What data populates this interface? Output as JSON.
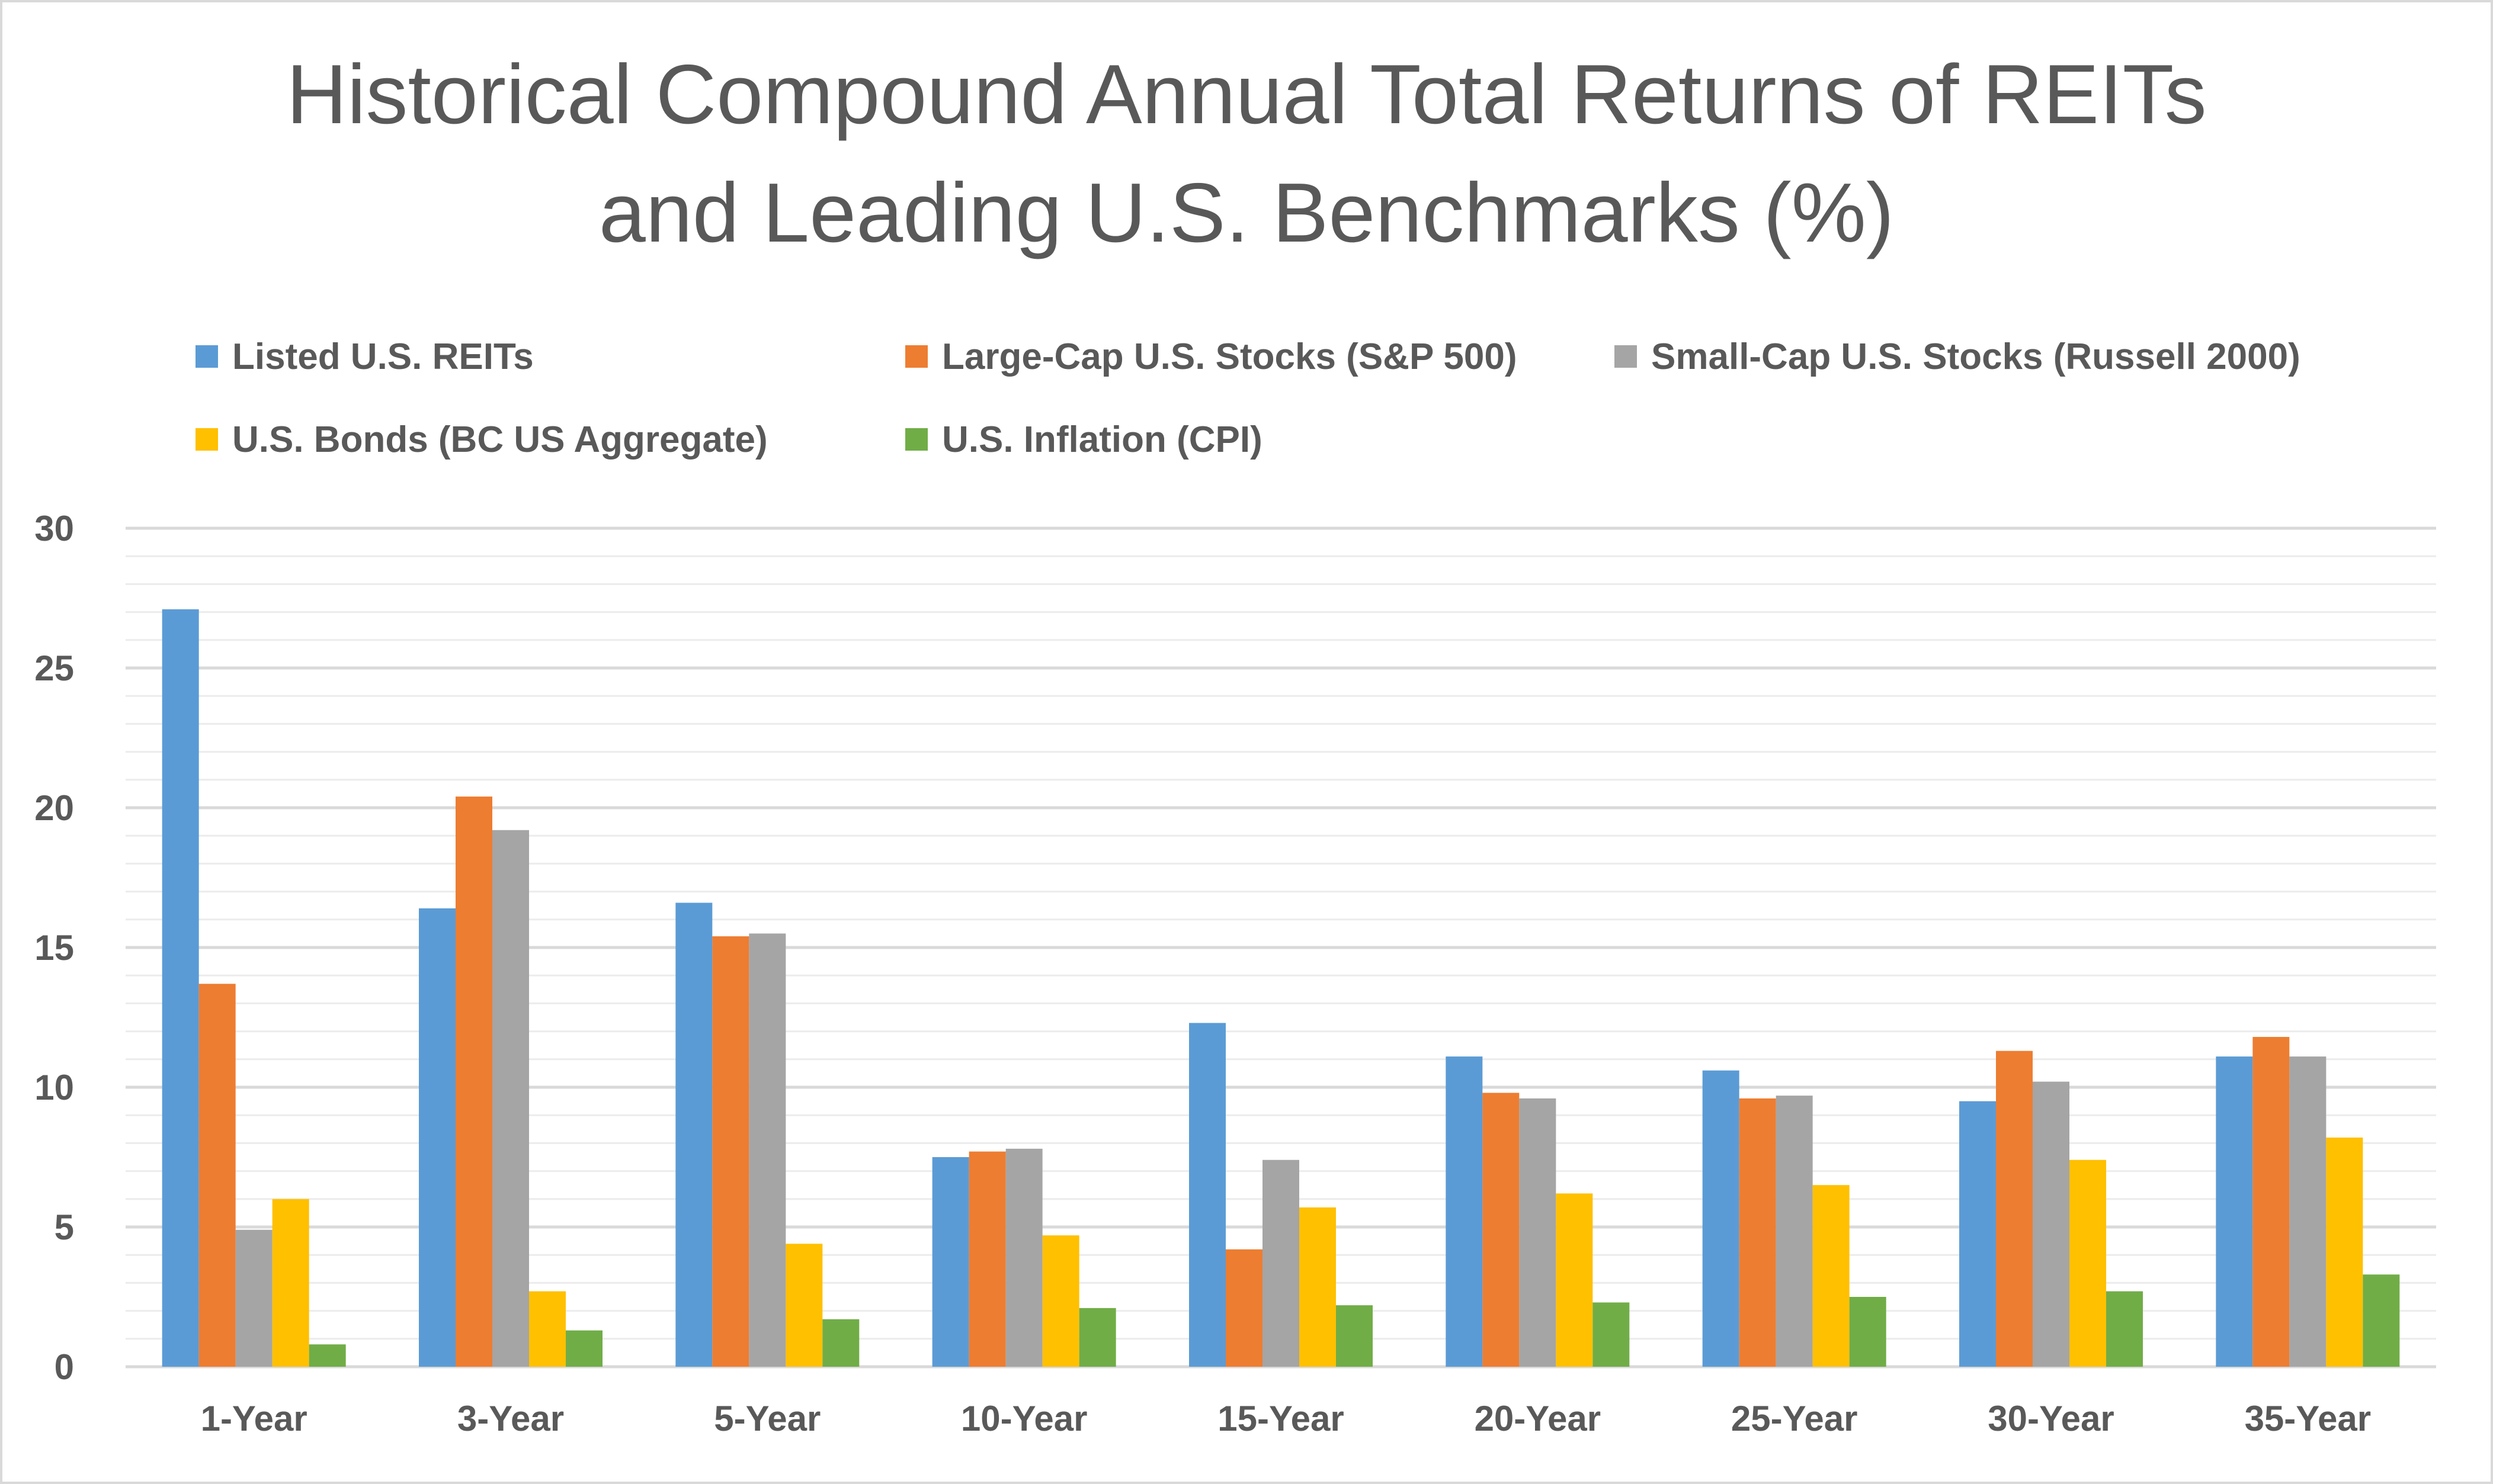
{
  "chart_data": {
    "type": "bar",
    "title": "Historical Compound Annual Total Returns of REITs and Leading U.S. Benchmarks (%)",
    "title_lines": [
      "Historical Compound Annual Total Returns of REITs",
      "and Leading U.S. Benchmarks (%)"
    ],
    "xlabel": "",
    "ylabel": "",
    "ylim": [
      0,
      30
    ],
    "y_ticks": [
      0,
      5,
      10,
      15,
      20,
      25,
      30
    ],
    "grid": true,
    "legend_placement": "top",
    "categories": [
      "1-Year",
      "3-Year",
      "5-Year",
      "10-Year",
      "15-Year",
      "20-Year",
      "25-Year",
      "30-Year",
      "35-Year"
    ],
    "series": [
      {
        "name": "Listed U.S. REITs",
        "color": "#5b9bd5",
        "values": [
          27.1,
          16.4,
          16.6,
          7.5,
          12.3,
          11.1,
          10.6,
          9.5,
          11.1
        ]
      },
      {
        "name": "Large-Cap U.S. Stocks (S&P 500)",
        "color": "#ed7d31",
        "values": [
          13.7,
          20.4,
          15.4,
          7.7,
          4.2,
          9.8,
          9.6,
          11.3,
          11.8
        ]
      },
      {
        "name": "Small-Cap U.S. Stocks (Russell 2000)",
        "color": "#a5a5a5",
        "values": [
          4.9,
          19.2,
          15.5,
          7.8,
          7.4,
          9.6,
          9.7,
          10.2,
          11.1
        ]
      },
      {
        "name": "U.S. Bonds (BC US Aggregate)",
        "color": "#ffc000",
        "values": [
          6.0,
          2.7,
          4.4,
          4.7,
          5.7,
          6.2,
          6.5,
          7.4,
          8.2
        ]
      },
      {
        "name": "U.S. Inflation (CPI)",
        "color": "#70ad47",
        "values": [
          0.8,
          1.3,
          1.7,
          2.1,
          2.2,
          2.3,
          2.5,
          2.7,
          3.3
        ]
      }
    ]
  },
  "style": {
    "gridline_color": "#d9d9d9",
    "minor_gridline_color": "#ececec",
    "text_color": "#595959",
    "background": "#ffffff"
  }
}
